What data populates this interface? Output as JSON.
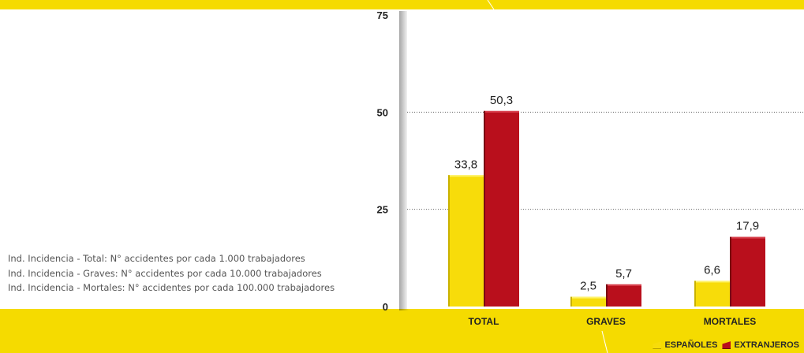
{
  "colors": {
    "banner": "#f5db00",
    "frame": "#ffffff",
    "espanoles": "#f7dc0a",
    "extranjeros": "#b90f1c",
    "gridline": "#666666",
    "text": "#222222"
  },
  "chart_data": {
    "type": "bar",
    "categories": [
      "TOTAL",
      "GRAVES",
      "MORTALES"
    ],
    "series": [
      {
        "name": "ESPAÑOLES",
        "values": [
          33.8,
          2.5,
          6.6
        ],
        "labels": [
          "33,8",
          "2,5",
          "6,6"
        ]
      },
      {
        "name": "EXTRANJEROS",
        "values": [
          50.3,
          5.7,
          17.9
        ],
        "labels": [
          "50,3",
          "5,7",
          "17,9"
        ]
      }
    ],
    "yticks": [
      0,
      25,
      50,
      75
    ],
    "ylim": [
      0,
      75
    ],
    "grid": true,
    "legend_position": "bottom-right"
  },
  "notes": [
    "Ind. Incidencia - Total: N° accidentes por cada 1.000 trabajadores",
    "Ind. Incidencia - Graves: N° accidentes por cada 10.000 trabajadores",
    "Ind. Incidencia - Mortales: N° accidentes por cada 100.000 trabajadores"
  ]
}
